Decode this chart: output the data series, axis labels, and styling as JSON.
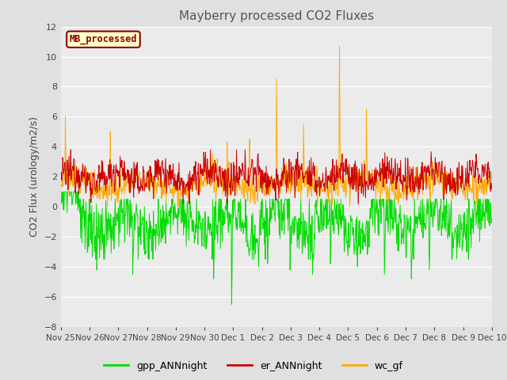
{
  "title": "Mayberry processed CO2 Fluxes",
  "ylabel": "CO2 Flux (urology/m2/s)",
  "ylim": [
    -8,
    12
  ],
  "yticks": [
    -8,
    -6,
    -4,
    -2,
    0,
    2,
    4,
    6,
    8,
    10,
    12
  ],
  "xlabels": [
    "Nov 25",
    "Nov 26",
    "Nov 27",
    "Nov 28",
    "Nov 29",
    "Nov 30",
    "Dec 1",
    "Dec 2",
    "Dec 3",
    "Dec 4",
    "Dec 5",
    "Dec 6",
    "Dec 7",
    "Dec 8",
    "Dec 9",
    "Dec 10"
  ],
  "legend_label": "MB_processed",
  "line_labels": [
    "gpp_ANNnight",
    "er_ANNnight",
    "wc_gf"
  ],
  "line_colors": [
    "#00dd00",
    "#cc0000",
    "#ffaa00"
  ],
  "bg_color": "#e0e0e0",
  "plot_bg_color": "#ebebeb",
  "grid_color": "#ffffff",
  "n_points": 960,
  "seed": 12345
}
